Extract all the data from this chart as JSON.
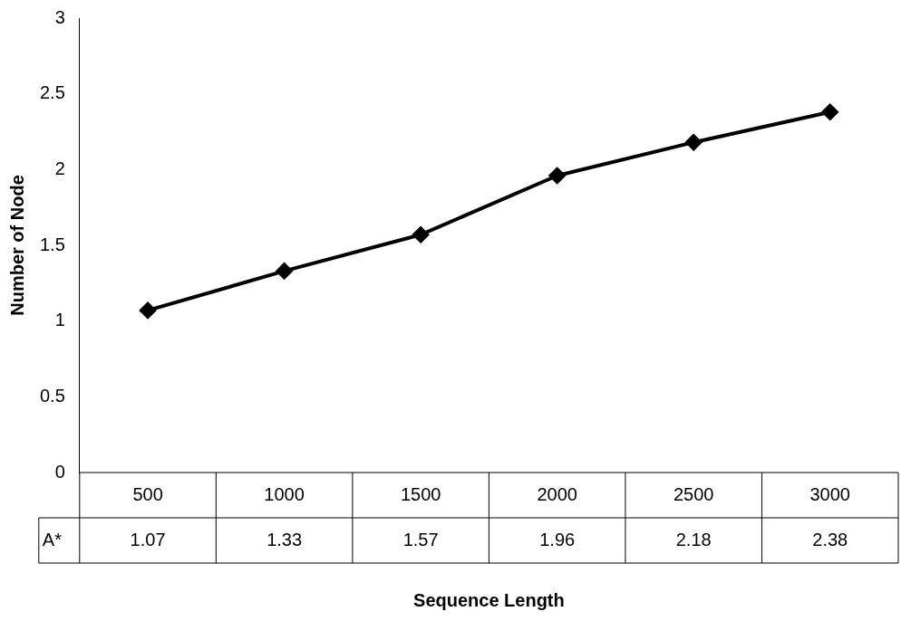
{
  "chart_data": {
    "type": "line",
    "xlabel": "Sequence Length",
    "ylabel": "Number of Node",
    "categories": [
      "500",
      "1000",
      "1500",
      "2000",
      "2500",
      "3000"
    ],
    "series": [
      {
        "name": "A*",
        "color": "#000000",
        "values": [
          1.07,
          1.33,
          1.57,
          1.96,
          2.18,
          2.38
        ]
      }
    ],
    "ylim": [
      0,
      3
    ],
    "yticks": [
      0,
      0.5,
      1,
      1.5,
      2,
      2.5,
      3
    ],
    "grid": false,
    "legend": false,
    "marker": "diamond",
    "line_style": "solid",
    "data_labels": true
  }
}
